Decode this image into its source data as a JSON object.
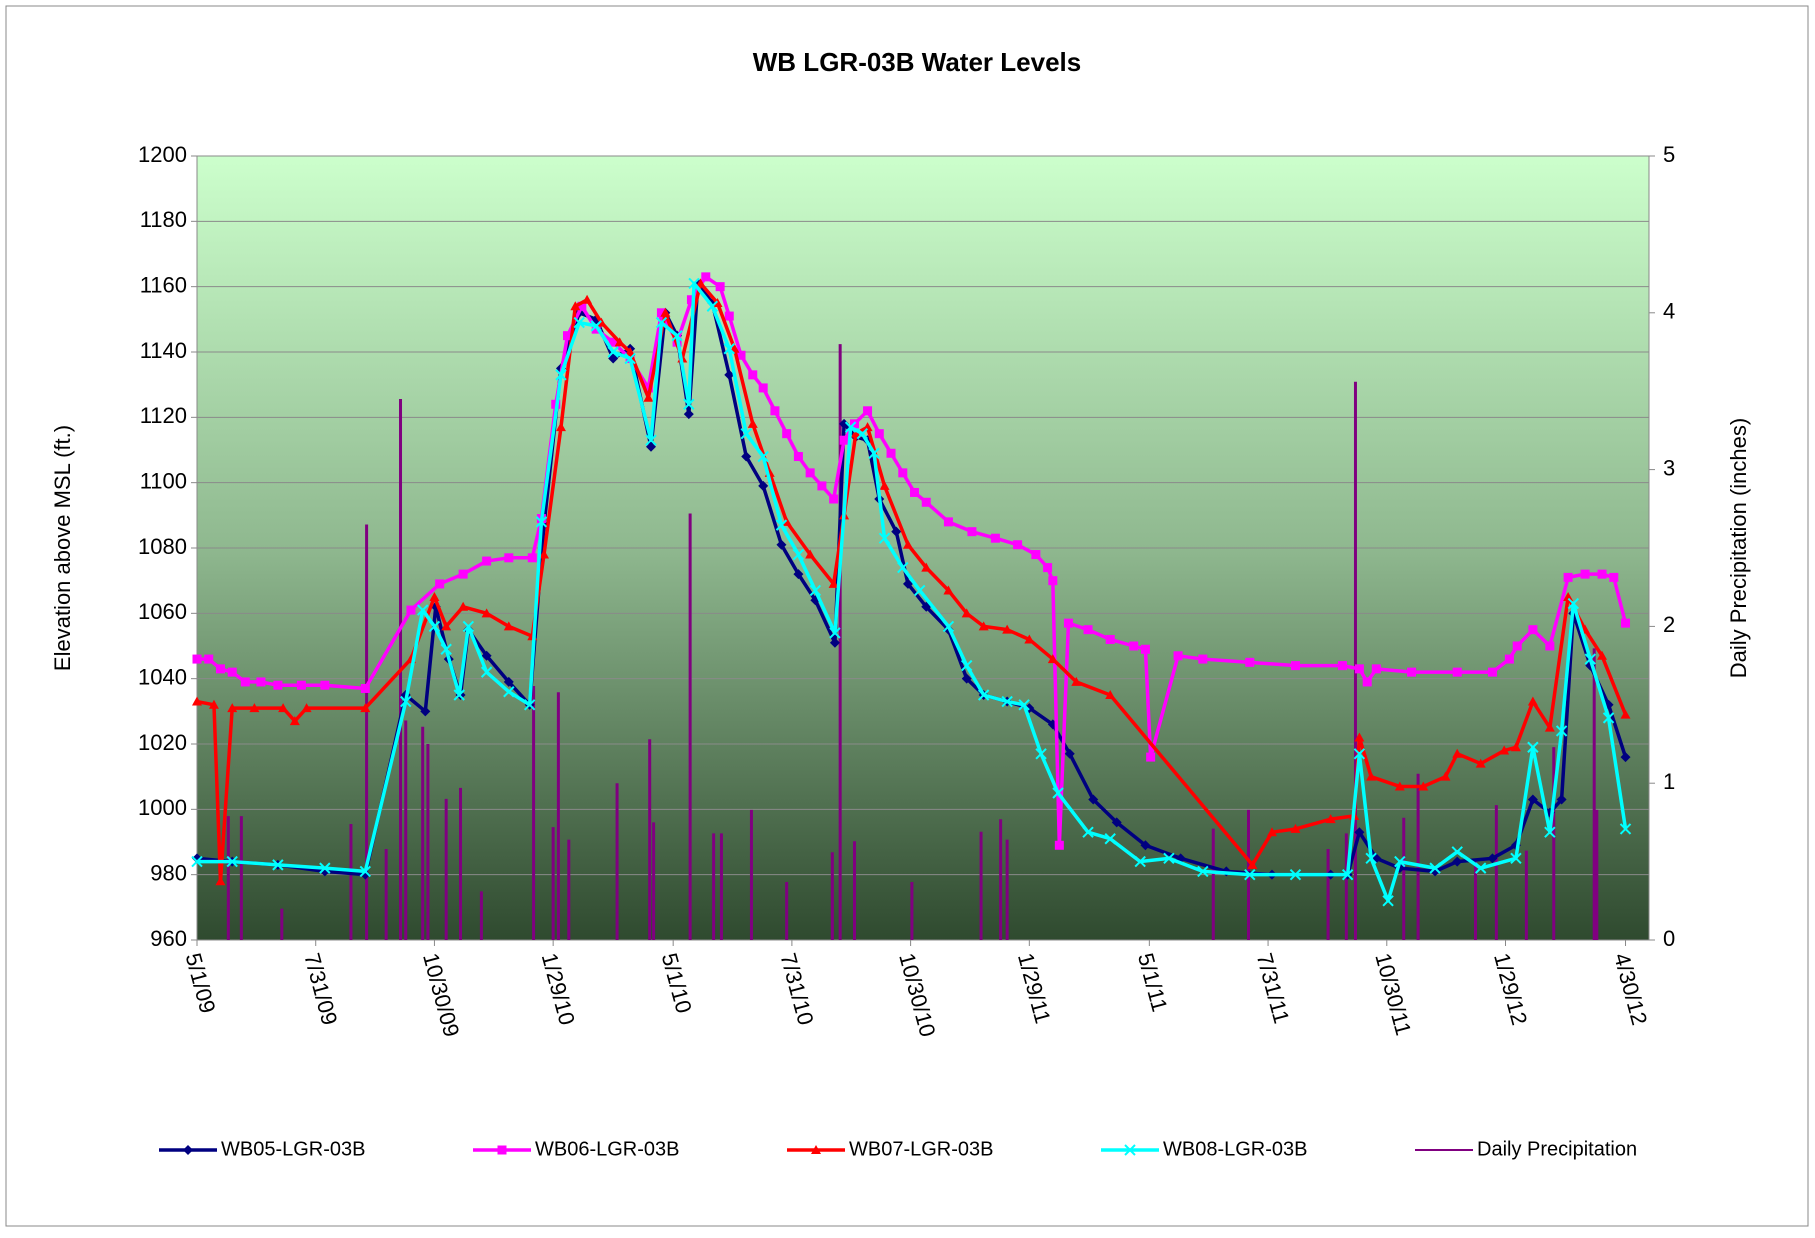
{
  "chart_data": {
    "type": "line",
    "title": "WB LGR-03B Water Levels",
    "y_label": "Elevation above MSL (ft.)",
    "y2_label": "Daily Precipitation (inches)",
    "xlim": [
      "2009-05-01",
      "2012-05-18"
    ],
    "xticks": [
      {
        "value": "2009-05-01",
        "label": "5/1/09"
      },
      {
        "value": "2009-07-31",
        "label": "7/31/09"
      },
      {
        "value": "2009-10-30",
        "label": "10/30/09"
      },
      {
        "value": "2010-01-29",
        "label": "1/29/10"
      },
      {
        "value": "2010-05-01",
        "label": "5/1/10"
      },
      {
        "value": "2010-07-31",
        "label": "7/31/10"
      },
      {
        "value": "2010-10-30",
        "label": "10/30/10"
      },
      {
        "value": "2011-01-29",
        "label": "1/29/11"
      },
      {
        "value": "2011-05-01",
        "label": "5/1/11"
      },
      {
        "value": "2011-07-31",
        "label": "7/31/11"
      },
      {
        "value": "2011-10-30",
        "label": "10/30/11"
      },
      {
        "value": "2012-01-29",
        "label": "1/29/12"
      },
      {
        "value": "2012-04-30",
        "label": "4/30/12"
      }
    ],
    "ylim": [
      960,
      1200
    ],
    "yticks": [
      960,
      980,
      1000,
      1020,
      1040,
      1060,
      1080,
      1100,
      1120,
      1140,
      1160,
      1180,
      1200
    ],
    "y2lim": [
      0,
      5
    ],
    "y2ticks": [
      0,
      1,
      2,
      3,
      4,
      5
    ],
    "grid": true,
    "legend": "bottom",
    "series": [
      {
        "name": "Daily Precipitation",
        "color": "#800080",
        "axis": "y2",
        "style": "spike",
        "x": [
          "2009-05-25",
          "2009-06-04",
          "2009-07-05",
          "2009-08-27",
          "2009-09-08",
          "2009-09-23",
          "2009-10-04",
          "2009-10-08",
          "2009-10-21",
          "2009-10-25",
          "2009-11-08",
          "2009-11-19",
          "2009-12-05",
          "2010-01-14",
          "2010-01-29",
          "2010-02-02",
          "2010-02-10",
          "2010-03-19",
          "2010-04-13",
          "2010-04-16",
          "2010-05-14",
          "2010-06-01",
          "2010-06-07",
          "2010-06-30",
          "2010-07-27",
          "2010-08-31",
          "2010-09-06",
          "2010-09-17",
          "2010-10-31",
          "2010-12-23",
          "2011-01-07",
          "2011-01-12",
          "2011-06-19",
          "2011-07-16",
          "2011-09-15",
          "2011-09-29",
          "2011-10-06",
          "2011-11-12",
          "2011-11-23",
          "2012-01-06",
          "2012-01-22",
          "2012-02-14",
          "2012-03-06",
          "2012-04-06",
          "2012-04-08"
        ],
        "values": [
          0.79,
          0.79,
          0.2,
          0.74,
          2.65,
          0.58,
          3.45,
          1.4,
          1.36,
          1.25,
          0.9,
          0.97,
          0.31,
          1.62,
          0.72,
          1.58,
          0.64,
          1.0,
          1.28,
          0.75,
          2.72,
          0.68,
          0.68,
          0.83,
          0.37,
          0.56,
          3.8,
          0.63,
          0.37,
          0.69,
          0.77,
          0.64,
          0.71,
          0.83,
          0.58,
          0.68,
          3.56,
          0.78,
          1.06,
          0.5,
          0.86,
          0.57,
          1.23,
          1.86,
          0.83
        ]
      },
      {
        "name": "WB05-LGR-03B",
        "color": "#000080",
        "marker": "diamond",
        "x": [
          "2009-05-01",
          "2009-05-28",
          "2009-07-02",
          "2009-08-07",
          "2009-09-07",
          "2009-10-08",
          "2009-10-23",
          "2009-10-31",
          "2009-11-10",
          "2009-11-19",
          "2009-11-25",
          "2009-12-09",
          "2009-12-26",
          "2010-01-11",
          "2010-01-22",
          "2010-02-04",
          "2010-02-18",
          "2010-03-03",
          "2010-03-16",
          "2010-03-29",
          "2010-04-14",
          "2010-04-25",
          "2010-05-04",
          "2010-05-13",
          "2010-05-20",
          "2010-05-31",
          "2010-06-13",
          "2010-06-26",
          "2010-07-09",
          "2010-07-23",
          "2010-08-05",
          "2010-08-18",
          "2010-09-02",
          "2010-09-09",
          "2010-09-18",
          "2010-09-27",
          "2010-10-06",
          "2010-10-19",
          "2010-10-28",
          "2010-11-11",
          "2010-11-28",
          "2010-12-12",
          "2010-12-25",
          "2011-01-12",
          "2011-01-29",
          "2011-02-16",
          "2011-03-01",
          "2011-03-19",
          "2011-04-06",
          "2011-04-28",
          "2011-05-25",
          "2011-06-29",
          "2011-08-03",
          "2011-09-17",
          "2011-09-30",
          "2011-10-09",
          "2011-10-22",
          "2011-11-09",
          "2011-12-06",
          "2011-12-23",
          "2012-01-19",
          "2012-02-06",
          "2012-02-19",
          "2012-03-03",
          "2012-03-12",
          "2012-03-21",
          "2012-04-03",
          "2012-04-17",
          "2012-04-30"
        ],
        "values": [
          985,
          984,
          983,
          981,
          980,
          1035,
          1030,
          1062,
          1046,
          1035,
          1055,
          1047,
          1039,
          1032,
          1087,
          1135,
          1152,
          1150,
          1138,
          1141,
          1111,
          1152,
          1145,
          1121,
          1161,
          1155,
          1133,
          1108,
          1099,
          1081,
          1072,
          1064,
          1051,
          1118,
          1114,
          1113,
          1095,
          1085,
          1069,
          1062,
          1055,
          1040,
          1035,
          1033,
          1031,
          1026,
          1017,
          1003,
          996,
          989,
          985,
          981,
          980,
          980,
          980,
          993,
          985,
          982,
          981,
          984,
          985,
          989,
          1003,
          999,
          1003,
          1060,
          1044,
          1032,
          1016
        ]
      },
      {
        "name": "WB06-LGR-03B",
        "color": "#ff00ff",
        "marker": "square",
        "x": [
          "2009-05-01",
          "2009-05-10",
          "2009-05-19",
          "2009-05-28",
          "2009-06-07",
          "2009-06-19",
          "2009-07-02",
          "2009-07-20",
          "2009-08-07",
          "2009-09-07",
          "2009-10-12",
          "2009-11-03",
          "2009-11-21",
          "2009-12-09",
          "2009-12-26",
          "2010-01-13",
          "2010-01-20",
          "2010-01-31",
          "2010-02-09",
          "2010-02-20",
          "2010-03-03",
          "2010-03-16",
          "2010-03-29",
          "2010-04-12",
          "2010-04-22",
          "2010-05-04",
          "2010-05-15",
          "2010-05-26",
          "2010-06-06",
          "2010-06-13",
          "2010-06-22",
          "2010-07-01",
          "2010-07-09",
          "2010-07-18",
          "2010-07-27",
          "2010-08-05",
          "2010-08-14",
          "2010-08-23",
          "2010-09-01",
          "2010-09-09",
          "2010-09-17",
          "2010-09-27",
          "2010-10-06",
          "2010-10-15",
          "2010-10-24",
          "2010-11-02",
          "2010-11-11",
          "2010-11-28",
          "2010-12-16",
          "2011-01-03",
          "2011-01-20",
          "2011-02-03",
          "2011-02-12",
          "2011-02-16",
          "2011-02-21",
          "2011-02-28",
          "2011-03-15",
          "2011-04-01",
          "2011-04-19",
          "2011-04-28",
          "2011-05-02",
          "2011-05-23",
          "2011-06-11",
          "2011-07-17",
          "2011-08-21",
          "2011-09-26",
          "2011-10-09",
          "2011-10-15",
          "2011-10-22",
          "2011-11-18",
          "2011-12-23",
          "2012-01-19",
          "2012-02-01",
          "2012-02-07",
          "2012-02-19",
          "2012-03-03",
          "2012-03-17",
          "2012-03-30",
          "2012-04-12",
          "2012-04-21",
          "2012-04-30"
        ],
        "values": [
          1046,
          1046,
          1043,
          1042,
          1039,
          1039,
          1038,
          1038,
          1038,
          1037,
          1061,
          1069,
          1072,
          1076,
          1077,
          1077,
          1089,
          1124,
          1145,
          1154,
          1147,
          1143,
          1138,
          1129,
          1152,
          1143,
          1156,
          1163,
          1160,
          1151,
          1139,
          1133,
          1129,
          1122,
          1115,
          1108,
          1103,
          1099,
          1095,
          1113,
          1118,
          1122,
          1115,
          1109,
          1103,
          1097,
          1094,
          1088,
          1085,
          1083,
          1081,
          1078,
          1074,
          1070,
          989,
          1057,
          1055,
          1052,
          1050,
          1049,
          1016,
          1047,
          1046,
          1045,
          1044,
          1044,
          1043,
          1039,
          1043,
          1042,
          1042,
          1042,
          1046,
          1050,
          1055,
          1050,
          1071,
          1072,
          1072,
          1071,
          1057
        ]
      },
      {
        "name": "WB07-LGR-03B",
        "color": "#ff0000",
        "marker": "triangle",
        "x": [
          "2009-05-01",
          "2009-05-14",
          "2009-05-19",
          "2009-05-28",
          "2009-06-14",
          "2009-07-06",
          "2009-07-15",
          "2009-07-24",
          "2009-09-07",
          "2009-10-12",
          "2009-10-30",
          "2009-11-08",
          "2009-11-21",
          "2009-12-09",
          "2009-12-26",
          "2010-01-13",
          "2010-01-22",
          "2010-02-04",
          "2010-02-15",
          "2010-02-24",
          "2010-03-07",
          "2010-03-21",
          "2010-03-29",
          "2010-04-12",
          "2010-04-25",
          "2010-05-08",
          "2010-05-22",
          "2010-06-04",
          "2010-06-17",
          "2010-07-01",
          "2010-07-14",
          "2010-07-27",
          "2010-08-14",
          "2010-09-01",
          "2010-09-09",
          "2010-09-18",
          "2010-09-27",
          "2010-10-10",
          "2010-10-28",
          "2010-11-11",
          "2010-11-28",
          "2010-12-12",
          "2010-12-25",
          "2011-01-12",
          "2011-01-29",
          "2011-02-16",
          "2011-03-06",
          "2011-04-01",
          "2011-07-19",
          "2011-08-03",
          "2011-08-21",
          "2011-09-17",
          "2011-10-05",
          "2011-10-09",
          "2011-10-18",
          "2011-11-09",
          "2011-11-27",
          "2011-12-14",
          "2011-12-23",
          "2012-01-10",
          "2012-01-28",
          "2012-02-06",
          "2012-02-19",
          "2012-03-03",
          "2012-03-17",
          "2012-03-30",
          "2012-04-12",
          "2012-04-30"
        ],
        "values": [
          1033,
          1032,
          978,
          1031,
          1031,
          1031,
          1027,
          1031,
          1031,
          1046,
          1065,
          1056,
          1062,
          1060,
          1056,
          1053,
          1078,
          1117,
          1154,
          1156,
          1149,
          1143,
          1140,
          1126,
          1152,
          1138,
          1161,
          1155,
          1141,
          1118,
          1103,
          1088,
          1078,
          1069,
          1090,
          1115,
          1117,
          1099,
          1081,
          1074,
          1067,
          1060,
          1056,
          1055,
          1052,
          1046,
          1039,
          1035,
          983,
          993,
          994,
          997,
          998,
          1022,
          1010,
          1007,
          1007,
          1010,
          1017,
          1014,
          1018,
          1019,
          1033,
          1025,
          1065,
          1055,
          1047,
          1029
        ]
      },
      {
        "name": "WB08-LGR-03B",
        "color": "#00ffff",
        "marker": "x",
        "x": [
          "2009-05-01",
          "2009-05-28",
          "2009-07-02",
          "2009-08-07",
          "2009-09-07",
          "2009-10-08",
          "2009-10-21",
          "2009-10-30",
          "2009-11-08",
          "2009-11-18",
          "2009-11-25",
          "2009-12-09",
          "2009-12-26",
          "2010-01-11",
          "2010-01-20",
          "2010-02-04",
          "2010-02-18",
          "2010-03-03",
          "2010-03-16",
          "2010-03-29",
          "2010-04-14",
          "2010-04-22",
          "2010-05-04",
          "2010-05-13",
          "2010-05-17",
          "2010-05-31",
          "2010-06-13",
          "2010-06-26",
          "2010-07-09",
          "2010-07-23",
          "2010-08-05",
          "2010-08-18",
          "2010-09-02",
          "2010-09-14",
          "2010-09-23",
          "2010-10-02",
          "2010-10-10",
          "2010-10-24",
          "2010-11-06",
          "2010-11-28",
          "2010-12-12",
          "2010-12-25",
          "2011-01-12",
          "2011-01-25",
          "2011-02-07",
          "2011-02-20",
          "2011-03-15",
          "2011-04-01",
          "2011-04-24",
          "2011-05-16",
          "2011-06-11",
          "2011-07-17",
          "2011-08-21",
          "2011-09-30",
          "2011-10-09",
          "2011-10-18",
          "2011-10-31",
          "2011-11-09",
          "2011-12-06",
          "2011-12-23",
          "2012-01-10",
          "2012-02-06",
          "2012-02-19",
          "2012-03-03",
          "2012-03-12",
          "2012-03-21",
          "2012-04-03",
          "2012-04-17",
          "2012-04-30"
        ],
        "values": [
          984,
          984,
          983,
          982,
          981,
          1033,
          1061,
          1056,
          1049,
          1035,
          1056,
          1042,
          1036,
          1032,
          1088,
          1133,
          1149,
          1148,
          1140,
          1138,
          1113,
          1149,
          1145,
          1124,
          1161,
          1154,
          1141,
          1115,
          1108,
          1087,
          1078,
          1067,
          1054,
          1117,
          1115,
          1109,
          1083,
          1074,
          1067,
          1056,
          1044,
          1035,
          1033,
          1032,
          1017,
          1005,
          993,
          991,
          984,
          985,
          981,
          980,
          980,
          980,
          1017,
          985,
          972,
          984,
          982,
          987,
          982,
          985,
          1019,
          993,
          1024,
          1063,
          1046,
          1028,
          994
        ]
      }
    ]
  }
}
